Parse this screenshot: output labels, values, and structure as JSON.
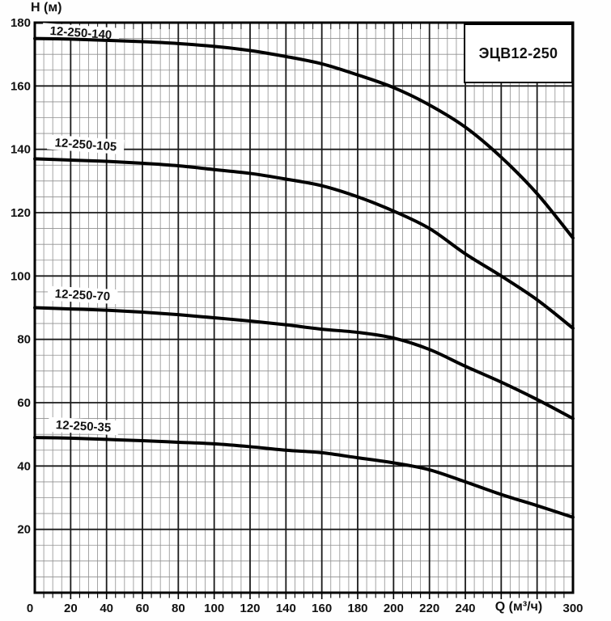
{
  "colors": {
    "background": "#fefefe",
    "plot_background": "#ffffff",
    "grid_minor": "#8f8f8f",
    "grid_major": "#1a1a1a",
    "border": "#000000",
    "curve": "#000000",
    "text": "#111111",
    "label_halo": "#ffffff"
  },
  "chart_data": {
    "type": "line",
    "title": "ЭЦВ12-250",
    "xlabel": "Q (м³/ч)",
    "ylabel": "H (м)",
    "xlim": [
      0,
      300
    ],
    "ylim": [
      0,
      180
    ],
    "x_major_step": 20,
    "x_minor_step": 5,
    "y_major_step": 20,
    "y_minor_step": 5,
    "grid": "on",
    "legend_position": "inline-curve-labels",
    "x_ticks_labeled": [
      0,
      20,
      40,
      60,
      80,
      100,
      120,
      140,
      160,
      180,
      200,
      220,
      240,
      300
    ],
    "y_ticks_labeled": [
      20,
      40,
      60,
      80,
      100,
      120,
      140,
      160,
      180
    ],
    "x_axis_title_at": 270,
    "series": [
      {
        "name": "12-250-140",
        "label_anchor": {
          "q": 25.7,
          "h": 176.8,
          "rotation": 4
        },
        "points": [
          [
            0,
            175
          ],
          [
            20,
            174.8
          ],
          [
            40,
            174.4
          ],
          [
            60,
            174
          ],
          [
            80,
            173.4
          ],
          [
            100,
            172.5
          ],
          [
            120,
            171.2
          ],
          [
            140,
            169.3
          ],
          [
            160,
            167
          ],
          [
            180,
            163.5
          ],
          [
            200,
            159.5
          ],
          [
            220,
            154
          ],
          [
            240,
            147
          ],
          [
            260,
            137.5
          ],
          [
            280,
            126
          ],
          [
            300,
            112
          ]
        ]
      },
      {
        "name": "12-250-105",
        "label_anchor": {
          "q": 28.4,
          "h": 141.5,
          "rotation": 4
        },
        "points": [
          [
            0,
            137
          ],
          [
            20,
            136.6
          ],
          [
            40,
            136.2
          ],
          [
            60,
            135.6
          ],
          [
            80,
            134.8
          ],
          [
            100,
            133.6
          ],
          [
            120,
            132.4
          ],
          [
            140,
            130.6
          ],
          [
            160,
            128.5
          ],
          [
            180,
            125
          ],
          [
            200,
            120.5
          ],
          [
            220,
            115
          ],
          [
            240,
            107
          ],
          [
            260,
            100
          ],
          [
            280,
            92.5
          ],
          [
            300,
            83.5
          ]
        ]
      },
      {
        "name": "12-250-70",
        "label_anchor": {
          "q": 26.6,
          "h": 94.0,
          "rotation": 3
        },
        "points": [
          [
            0,
            90
          ],
          [
            20,
            89.6
          ],
          [
            40,
            89.2
          ],
          [
            60,
            88.6
          ],
          [
            80,
            87.8
          ],
          [
            100,
            86.8
          ],
          [
            120,
            85.8
          ],
          [
            140,
            84.6
          ],
          [
            160,
            83.2
          ],
          [
            180,
            82.2
          ],
          [
            200,
            80.4
          ],
          [
            220,
            76.8
          ],
          [
            240,
            71.5
          ],
          [
            260,
            66.5
          ],
          [
            280,
            61
          ],
          [
            300,
            55
          ]
        ]
      },
      {
        "name": "12-250-35",
        "label_anchor": {
          "q": 27.1,
          "h": 52.6,
          "rotation": 3
        },
        "points": [
          [
            0,
            49
          ],
          [
            20,
            48.8
          ],
          [
            40,
            48.4
          ],
          [
            60,
            48
          ],
          [
            80,
            47.5
          ],
          [
            100,
            47
          ],
          [
            120,
            46.1
          ],
          [
            140,
            45
          ],
          [
            160,
            44.2
          ],
          [
            180,
            42.6
          ],
          [
            200,
            41
          ],
          [
            220,
            38.8
          ],
          [
            240,
            35
          ],
          [
            260,
            31
          ],
          [
            280,
            27.5
          ],
          [
            300,
            23.8
          ]
        ]
      }
    ]
  }
}
